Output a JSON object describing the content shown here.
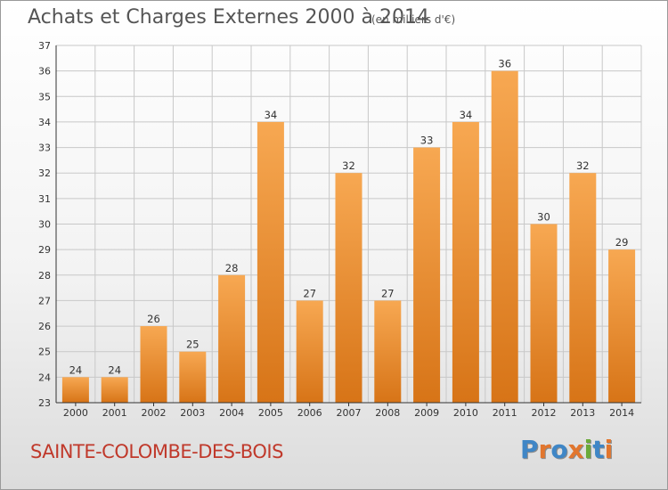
{
  "header": {
    "title": "Achats et Charges Externes 2000 à 2014",
    "unit": "(en milliers d'€)"
  },
  "footer": {
    "commune": "SAINTE-COLOMBE-DES-BOIS",
    "logo": "Proxiti"
  },
  "colors": {
    "bar_light": "#f7a852",
    "bar_dark": "#d77417",
    "grid": "#c8c8c8",
    "axis": "#333333",
    "title": "#555555",
    "commune": "#c0392b",
    "logo": [
      "#3f86c6",
      "#e2762e",
      "#3f86c6",
      "#e2762e",
      "#6aaa3a",
      "#3f86c6",
      "#e2762e"
    ]
  },
  "chart_data": {
    "type": "bar",
    "title": "Achats et Charges Externes 2000 à 2014",
    "subtitle": "(en milliers d'€)",
    "xlabel": "",
    "ylabel": "",
    "categories": [
      "2000",
      "2001",
      "2002",
      "2003",
      "2004",
      "2005",
      "2006",
      "2007",
      "2008",
      "2009",
      "2010",
      "2011",
      "2012",
      "2013",
      "2014"
    ],
    "values": [
      24,
      24,
      26,
      25,
      28,
      34,
      27,
      32,
      27,
      33,
      34,
      36,
      30,
      32,
      29
    ],
    "ylim": [
      23,
      37
    ],
    "yticks": [
      23,
      24,
      25,
      26,
      27,
      28,
      29,
      30,
      31,
      32,
      33,
      34,
      35,
      36,
      37
    ],
    "grid": true,
    "legend": "none"
  }
}
